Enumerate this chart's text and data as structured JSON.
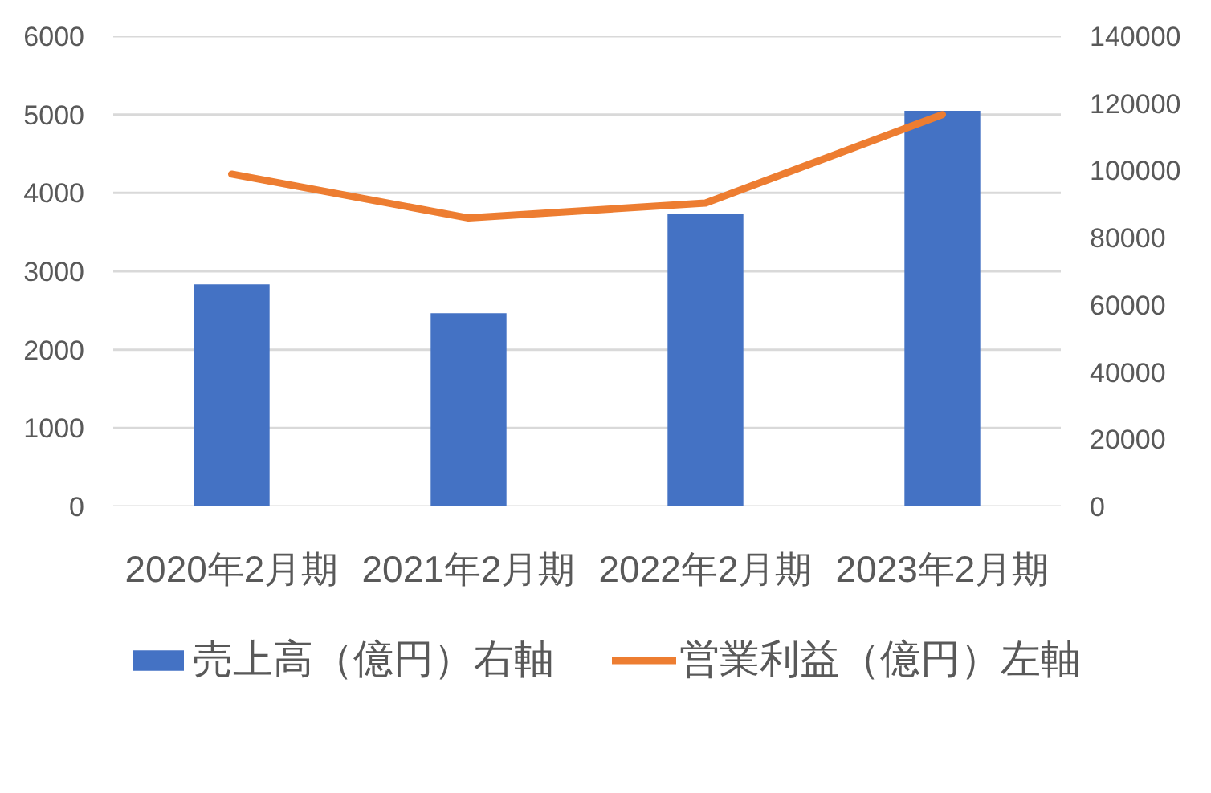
{
  "chart_data": {
    "type": "bar",
    "categories": [
      "2020年2月期",
      "2021年2月期",
      "2022年2月期",
      "2023年2月期"
    ],
    "series": [
      {
        "name": "売上高（億円）右軸",
        "axis": "y2",
        "color": "#4472c4",
        "values": [
          66100,
          57500,
          87200,
          117800
        ]
      },
      {
        "name": "営業利益（億円）左軸",
        "type": "line",
        "color": "#ed7d31",
        "values": [
          4240,
          3680,
          3870,
          5000
        ]
      }
    ],
    "ylim": [
      0,
      6000
    ],
    "yticks": [
      0,
      1000,
      2000,
      3000,
      4000,
      5000,
      6000
    ],
    "y2lim": [
      0,
      140000
    ],
    "y2ticks": [
      0,
      20000,
      40000,
      60000,
      80000,
      100000,
      120000,
      140000
    ],
    "grid": "y",
    "legend": "bottom"
  }
}
